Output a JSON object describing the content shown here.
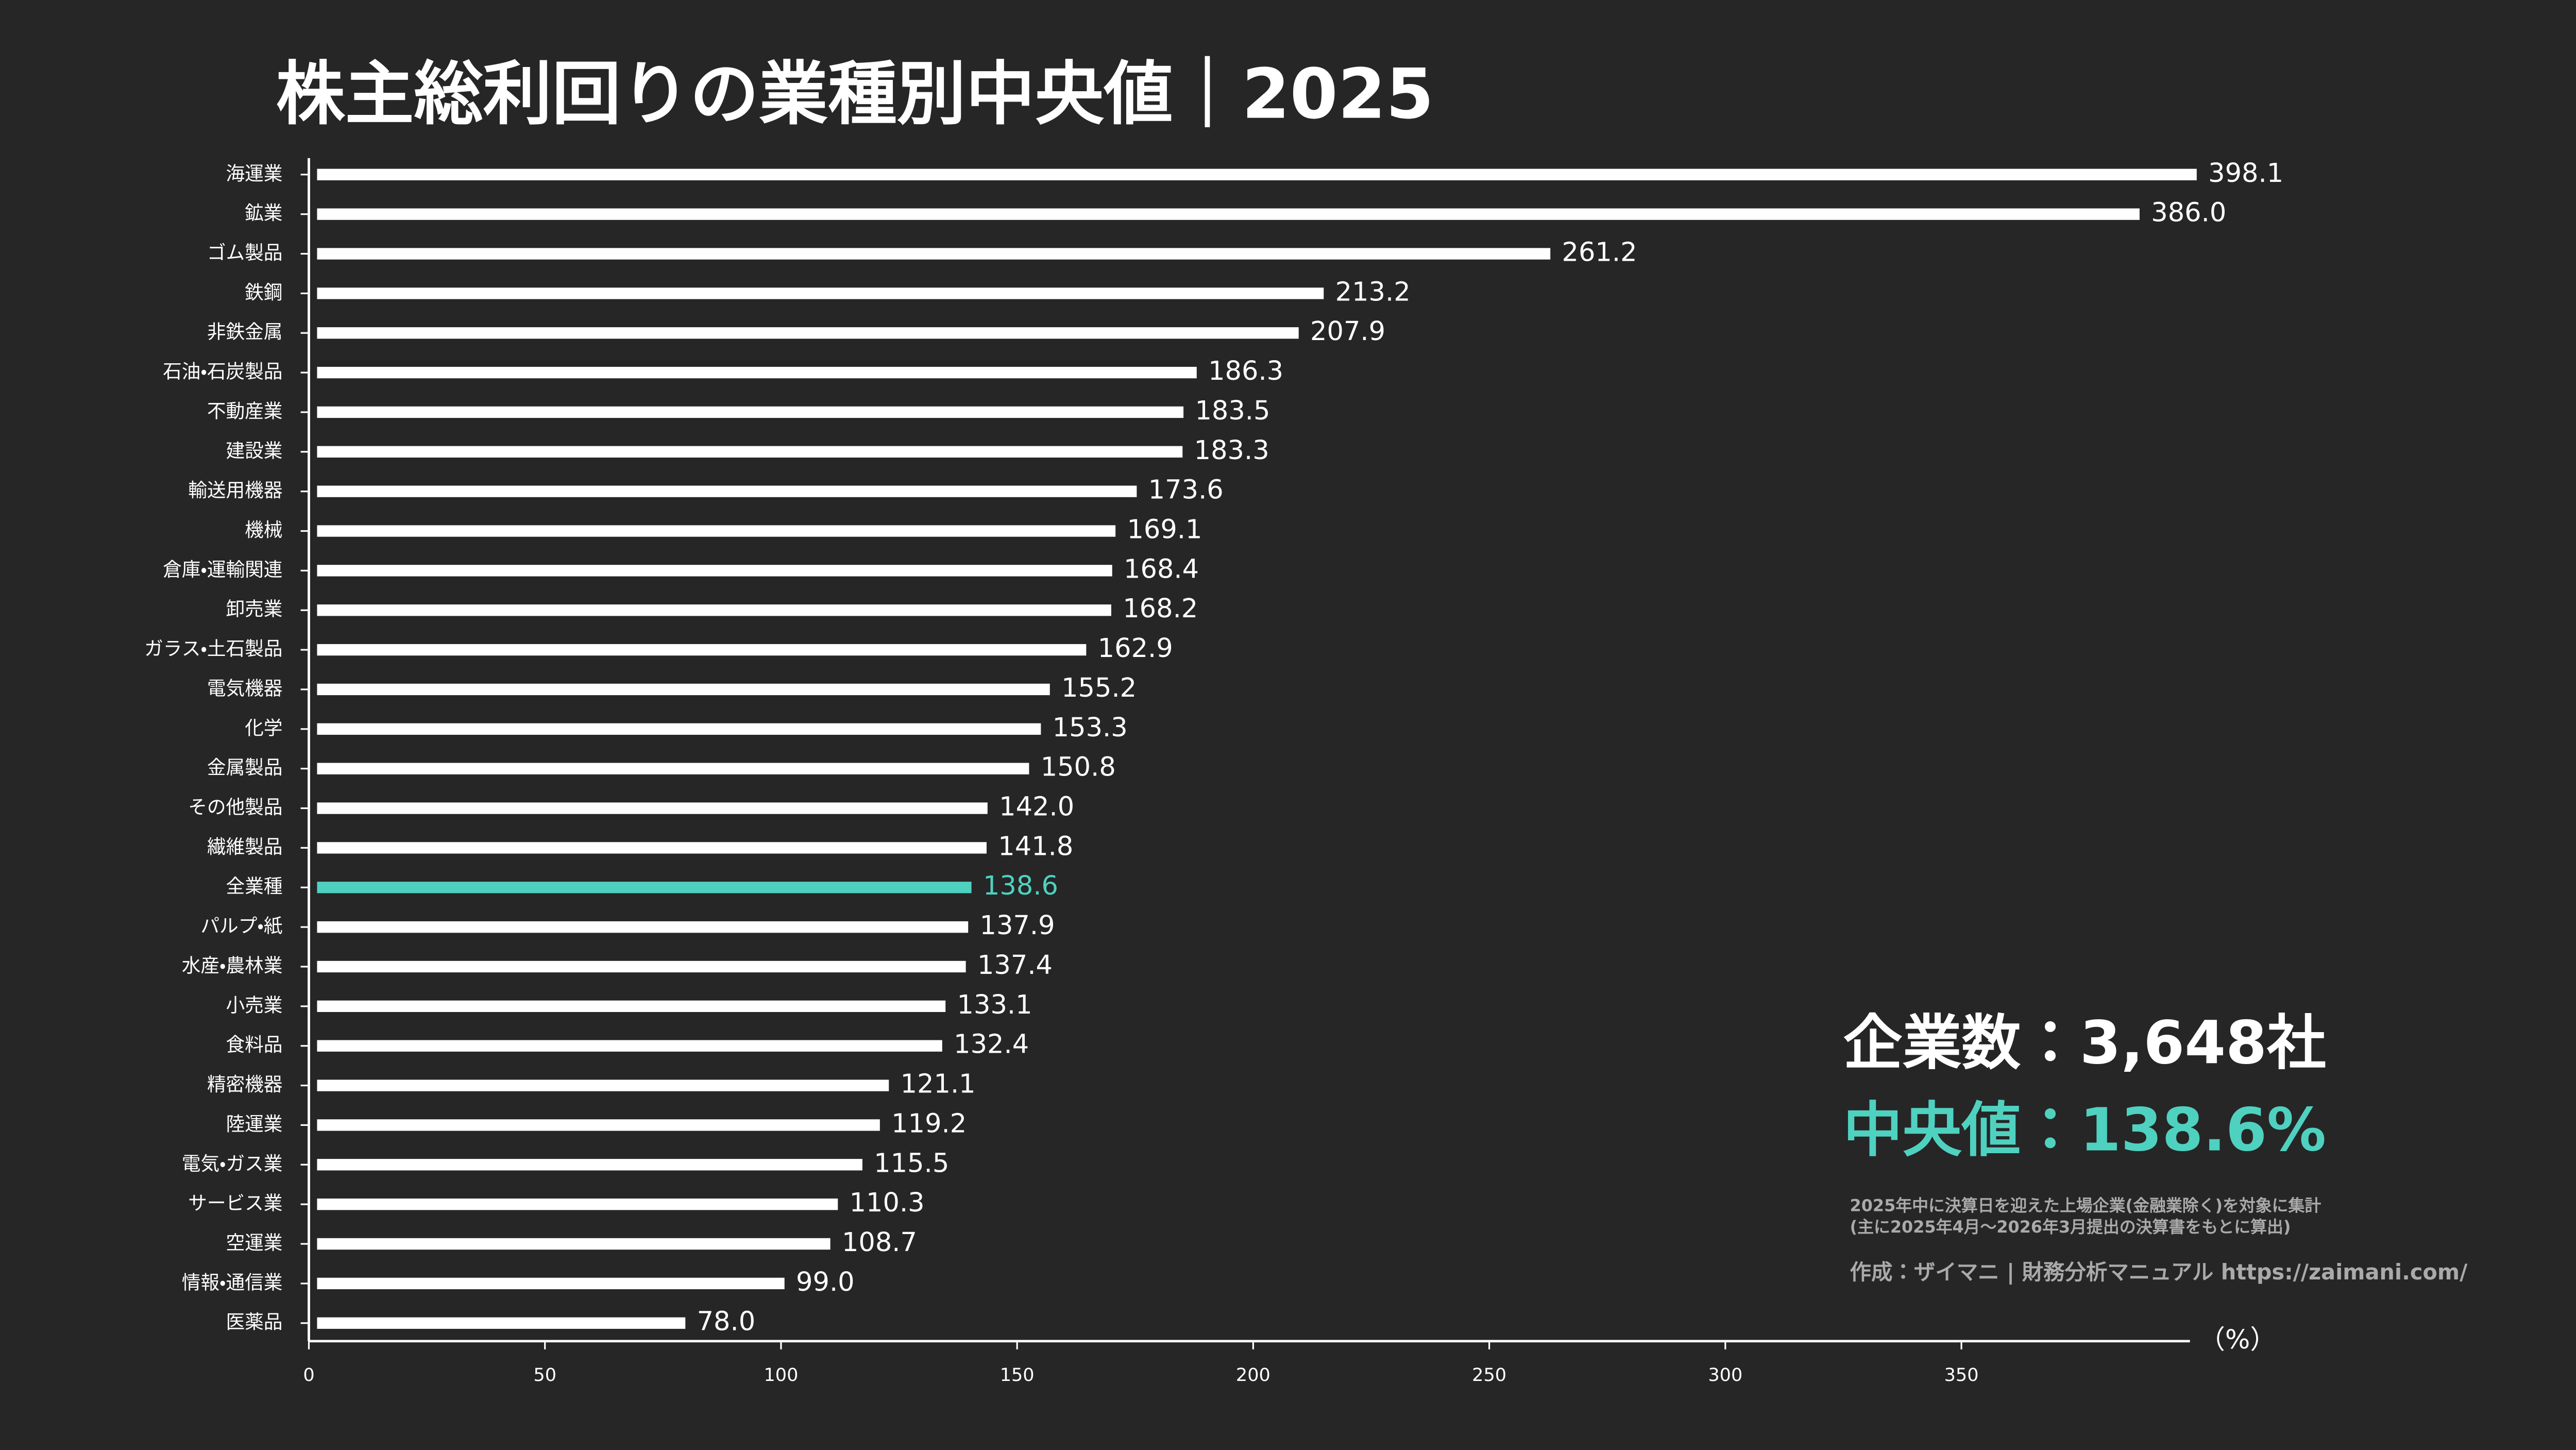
{
  "chart_data": {
    "type": "barh",
    "title": "株主総利回りの業種別中央値｜2025",
    "categories": [
      "海運業",
      "鉱業",
      "ゴム製品",
      "鉄鋼",
      "非鉄金属",
      "石油・石炭製品",
      "不動産業",
      "建設業",
      "輸送用機器",
      "機械",
      "倉庫・運輸関連",
      "卸売業",
      "ガラス・土石製品",
      "電気機器",
      "化学",
      "金属製品",
      "その他製品",
      "繊維製品",
      "全業種",
      "パルプ・紙",
      "水産・農林業",
      "小売業",
      "食料品",
      "精密機器",
      "陸運業",
      "電気・ガス業",
      "サービス業",
      "空運業",
      "情報・通信業",
      "医薬品"
    ],
    "values": [
      398.1,
      386.0,
      261.2,
      213.2,
      207.9,
      186.3,
      183.5,
      183.3,
      173.6,
      169.1,
      168.4,
      168.2,
      162.9,
      155.2,
      153.3,
      150.8,
      142.0,
      141.8,
      138.6,
      137.9,
      137.4,
      133.1,
      132.4,
      121.1,
      119.2,
      115.5,
      110.3,
      108.7,
      99.0,
      78.0
    ],
    "value_labels": [
      "398.1",
      "386.0",
      "261.2",
      "213.2",
      "207.9",
      "186.3",
      "183.5",
      "183.3",
      "173.6",
      "169.1",
      "168.4",
      "168.2",
      "162.9",
      "155.2",
      "153.3",
      "150.8",
      "142.0",
      "141.8",
      "138.6",
      "137.9",
      "137.4",
      "133.1",
      "132.4",
      "121.1",
      "119.2",
      "115.5",
      "110.3",
      "108.7",
      "99.0",
      "78.0"
    ],
    "color": "#ffffff",
    "highlight_index": 18,
    "highlight_color": "#4fd1c0",
    "xlim": [
      0,
      398.4
    ],
    "xticks": [
      0,
      50,
      100,
      150,
      200,
      250,
      300,
      350
    ],
    "x_label": "（%）",
    "count_label": "企業数：3,648社",
    "median_label": "中央値：138.6%",
    "notes": [
      "2025年中に決算日を迎えた上場企業(金融業除く)を対象に集計",
      "(主に2025年4月〜2026年3月提出の決算書をもとに算出)"
    ],
    "credit": "作成：ザイマニ | 財務分析マニュアル https://zaimani.com/"
  }
}
